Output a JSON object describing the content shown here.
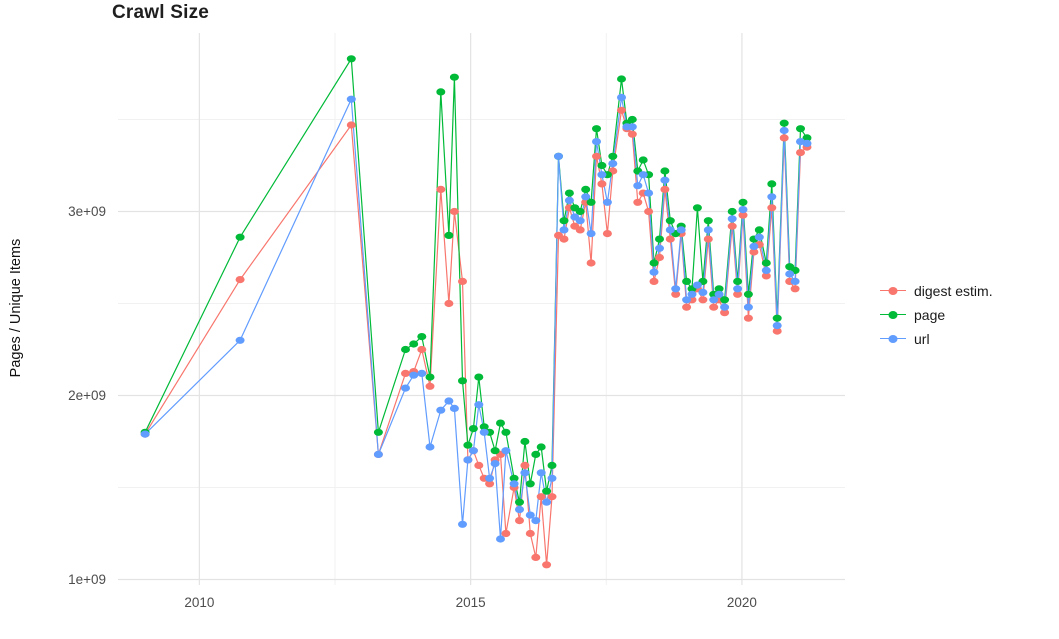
{
  "title": "Crawl Size",
  "colors": {
    "background": "#FFFFFF",
    "grid_major": "#E3E3E3",
    "grid_minor": "#F1F1F1",
    "tick_text": "#4D4D4D"
  },
  "chart_data": {
    "type": "line",
    "title": "Crawl Size",
    "xlabel": "",
    "ylabel": "Pages / Unique Items",
    "y_unit": 1000000000.0,
    "x_unit": "year",
    "legend_position": "right",
    "grid": true,
    "xlim": [
      2008.5,
      2021.9
    ],
    "ylim": [
      0.97,
      3.97
    ],
    "x_ticks": [
      2010,
      2015,
      2020
    ],
    "x_tick_labels": [
      "2010",
      "2015",
      "2020"
    ],
    "x_minor_ticks": [
      2012.5,
      2017.5
    ],
    "y_ticks": [
      1,
      2,
      3
    ],
    "y_tick_labels": [
      "1e+09",
      "2e+09",
      "3e+09"
    ],
    "y_minor_ticks": [
      1.5,
      2.5,
      3.5
    ],
    "x": [
      2009.0,
      2010.75,
      2012.8,
      2013.3,
      2013.8,
      2013.95,
      2014.1,
      2014.25,
      2014.45,
      2014.6,
      2014.7,
      2014.85,
      2014.95,
      2015.05,
      2015.15,
      2015.25,
      2015.35,
      2015.45,
      2015.55,
      2015.65,
      2015.8,
      2015.9,
      2016.0,
      2016.1,
      2016.2,
      2016.3,
      2016.4,
      2016.5,
      2016.62,
      2016.72,
      2016.82,
      2016.92,
      2017.02,
      2017.12,
      2017.22,
      2017.32,
      2017.42,
      2017.52,
      2017.62,
      2017.78,
      2017.88,
      2017.98,
      2018.08,
      2018.18,
      2018.28,
      2018.38,
      2018.48,
      2018.58,
      2018.68,
      2018.78,
      2018.88,
      2018.98,
      2019.08,
      2019.18,
      2019.28,
      2019.38,
      2019.48,
      2019.58,
      2019.68,
      2019.82,
      2019.92,
      2020.02,
      2020.12,
      2020.22,
      2020.32,
      2020.45,
      2020.55,
      2020.65,
      2020.78,
      2020.88,
      2020.98,
      2021.08,
      2021.2
    ],
    "series": [
      {
        "name": "digest estim.",
        "color": "#F8766D",
        "values": [
          1.79,
          2.63,
          3.47,
          1.68,
          2.12,
          2.13,
          2.25,
          2.05,
          3.12,
          2.5,
          3.0,
          2.62,
          1.65,
          1.7,
          1.62,
          1.55,
          1.52,
          1.65,
          1.68,
          1.25,
          1.5,
          1.32,
          1.62,
          1.25,
          1.12,
          1.45,
          1.08,
          1.45,
          2.87,
          2.85,
          3.02,
          2.92,
          2.9,
          3.05,
          2.72,
          3.3,
          3.15,
          2.88,
          3.22,
          3.55,
          3.45,
          3.42,
          3.05,
          3.1,
          3.0,
          2.62,
          2.75,
          3.12,
          2.85,
          2.55,
          2.88,
          2.48,
          2.52,
          2.58,
          2.52,
          2.85,
          2.48,
          2.52,
          2.45,
          2.92,
          2.55,
          2.98,
          2.42,
          2.78,
          2.82,
          2.65,
          3.02,
          2.35,
          3.4,
          2.62,
          2.58,
          3.32,
          3.35
        ]
      },
      {
        "name": "page",
        "color": "#00BA38",
        "values": [
          1.8,
          2.86,
          3.83,
          1.8,
          2.25,
          2.28,
          2.32,
          2.1,
          3.65,
          2.87,
          3.73,
          2.08,
          1.73,
          1.82,
          2.1,
          1.83,
          1.8,
          1.7,
          1.85,
          1.8,
          1.55,
          1.42,
          1.75,
          1.52,
          1.68,
          1.72,
          1.48,
          1.62,
          3.3,
          2.95,
          3.1,
          3.02,
          3.0,
          3.12,
          3.05,
          3.45,
          3.25,
          3.2,
          3.3,
          3.72,
          3.48,
          3.5,
          3.22,
          3.28,
          3.2,
          2.72,
          2.85,
          3.22,
          2.95,
          2.88,
          2.92,
          2.62,
          2.58,
          3.02,
          2.62,
          2.95,
          2.55,
          2.58,
          2.52,
          3.0,
          2.62,
          3.05,
          2.55,
          2.85,
          2.9,
          2.72,
          3.15,
          2.42,
          3.48,
          2.7,
          2.68,
          3.45,
          3.4
        ]
      },
      {
        "name": "url",
        "color": "#619CFF",
        "values": [
          1.79,
          2.3,
          3.61,
          1.68,
          2.04,
          2.11,
          2.12,
          1.72,
          1.92,
          1.97,
          1.93,
          1.3,
          1.65,
          1.7,
          1.95,
          1.8,
          1.55,
          1.63,
          1.22,
          1.7,
          1.52,
          1.38,
          1.58,
          1.35,
          1.32,
          1.58,
          1.42,
          1.55,
          3.3,
          2.9,
          3.06,
          2.97,
          2.95,
          3.08,
          2.88,
          3.38,
          3.2,
          3.05,
          3.26,
          3.62,
          3.46,
          3.46,
          3.14,
          3.2,
          3.1,
          2.67,
          2.8,
          3.17,
          2.9,
          2.58,
          2.9,
          2.52,
          2.55,
          2.6,
          2.56,
          2.9,
          2.52,
          2.55,
          2.48,
          2.96,
          2.58,
          3.01,
          2.48,
          2.81,
          2.86,
          2.68,
          3.08,
          2.38,
          3.44,
          2.66,
          2.62,
          3.38,
          3.37
        ]
      }
    ]
  }
}
